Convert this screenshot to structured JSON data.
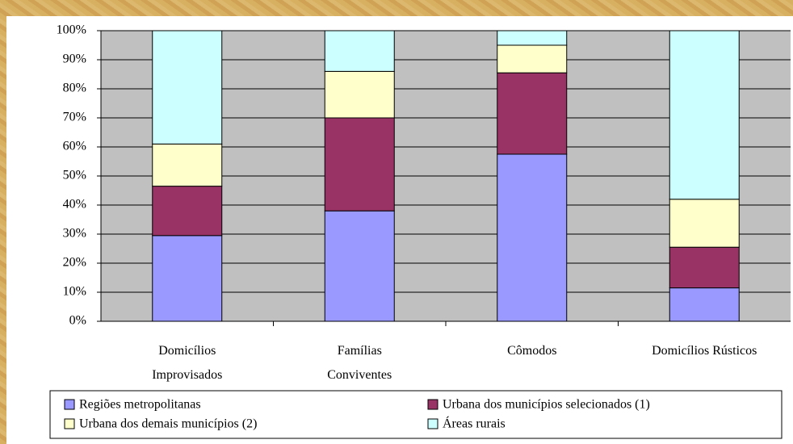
{
  "chart_data": {
    "type": "stacked_bar",
    "categories": [
      "Domicílios Improvisados",
      "Famílias Conviventes",
      "Cômodos",
      "Domicílios Rústicos"
    ],
    "series": [
      {
        "name": "Regiões metropolitanas",
        "color": "#9999ff",
        "values": [
          29.5,
          38,
          57.5,
          11.5
        ]
      },
      {
        "name": "Urbana dos municípios selecionados (1)",
        "color": "#993366",
        "values": [
          17,
          32,
          28,
          14
        ]
      },
      {
        "name": "Urbana dos demais municípios (2)",
        "color": "#ffffcc",
        "values": [
          14.5,
          16,
          9.5,
          16.5
        ]
      },
      {
        "name": "Áreas rurais",
        "color": "#ccffff",
        "values": [
          39,
          14,
          5,
          58
        ]
      }
    ],
    "ylim": [
      0,
      100
    ],
    "yticks": [
      {
        "value": 0,
        "label": "0%"
      },
      {
        "value": 10,
        "label": "10%"
      },
      {
        "value": 20,
        "label": "20%"
      },
      {
        "value": 30,
        "label": "30%"
      },
      {
        "value": 40,
        "label": "40%"
      },
      {
        "value": 50,
        "label": "50%"
      },
      {
        "value": 60,
        "label": "60%"
      },
      {
        "value": 70,
        "label": "70%"
      },
      {
        "value": 80,
        "label": "80%"
      },
      {
        "value": 90,
        "label": "90%"
      },
      {
        "value": 100,
        "label": "100%"
      }
    ],
    "grid": true,
    "legend": "bottom"
  }
}
